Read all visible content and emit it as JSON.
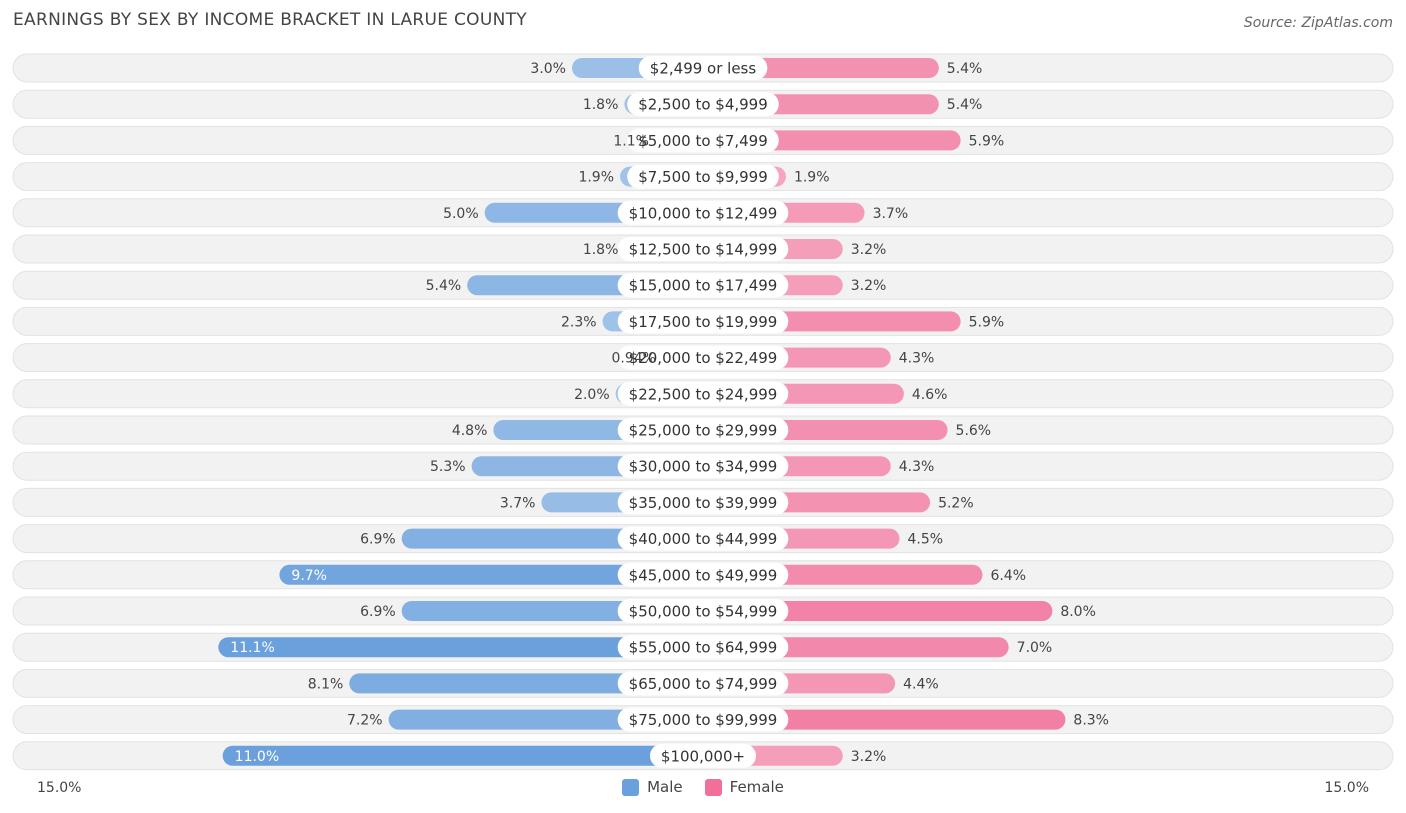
{
  "title": "EARNINGS BY SEX BY INCOME BRACKET IN LARUE COUNTY",
  "source": "Source: ZipAtlas.com",
  "colors": {
    "male": "#6aa0dc",
    "female": "#f0709a",
    "track": "#f1f1f1"
  },
  "chart_data": {
    "type": "bar",
    "orientation": "horizontal-diverging",
    "title": "EARNINGS BY SEX BY INCOME BRACKET IN LARUE COUNTY",
    "axis_max": 15.0,
    "axis_left_label": "15.0%",
    "axis_right_label": "15.0%",
    "categories": [
      "$2,499 or less",
      "$2,500 to $4,999",
      "$5,000 to $7,499",
      "$7,500 to $9,999",
      "$10,000 to $12,499",
      "$12,500 to $14,999",
      "$15,000 to $17,499",
      "$17,500 to $19,999",
      "$20,000 to $22,499",
      "$22,500 to $24,999",
      "$25,000 to $29,999",
      "$30,000 to $34,999",
      "$35,000 to $39,999",
      "$40,000 to $44,999",
      "$45,000 to $49,999",
      "$50,000 to $54,999",
      "$55,000 to $64,999",
      "$65,000 to $74,999",
      "$75,000 to $99,999",
      "$100,000+"
    ],
    "series": [
      {
        "name": "Male",
        "values": [
          3.0,
          1.8,
          1.1,
          1.9,
          5.0,
          1.8,
          5.4,
          2.3,
          0.94,
          2.0,
          4.8,
          5.3,
          3.7,
          6.9,
          9.7,
          6.9,
          11.1,
          8.1,
          7.2,
          11.0
        ],
        "labels": [
          "3.0%",
          "1.8%",
          "1.1%",
          "1.9%",
          "5.0%",
          "1.8%",
          "5.4%",
          "2.3%",
          "0.94%",
          "2.0%",
          "4.8%",
          "5.3%",
          "3.7%",
          "6.9%",
          "9.7%",
          "6.9%",
          "11.1%",
          "8.1%",
          "7.2%",
          "11.0%"
        ]
      },
      {
        "name": "Female",
        "values": [
          5.4,
          5.4,
          5.9,
          1.9,
          3.7,
          3.2,
          3.2,
          5.9,
          4.3,
          4.6,
          5.6,
          4.3,
          5.2,
          4.5,
          6.4,
          8.0,
          7.0,
          4.4,
          8.3,
          3.2
        ],
        "labels": [
          "5.4%",
          "5.4%",
          "5.9%",
          "1.9%",
          "3.7%",
          "3.2%",
          "3.2%",
          "5.9%",
          "4.3%",
          "4.6%",
          "5.6%",
          "4.3%",
          "5.2%",
          "4.5%",
          "6.4%",
          "8.0%",
          "7.0%",
          "4.4%",
          "8.3%",
          "3.2%"
        ]
      }
    ],
    "legend": [
      "Male",
      "Female"
    ],
    "legend_position": "bottom-center"
  }
}
